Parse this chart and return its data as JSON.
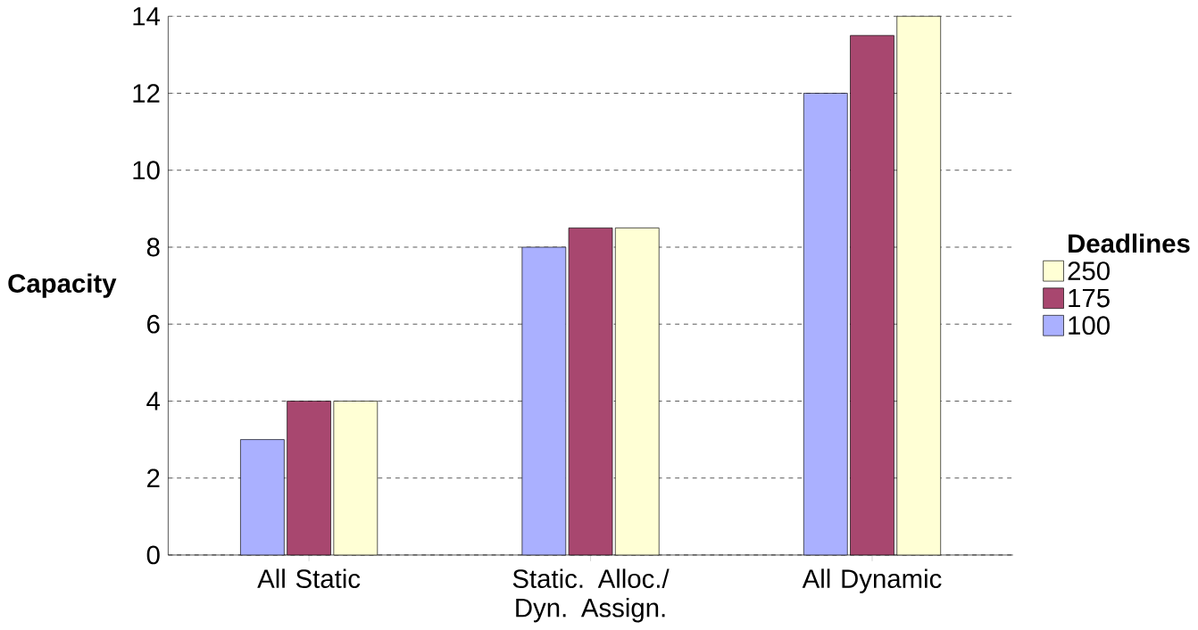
{
  "chart_data": {
    "type": "bar",
    "ylabel": "Capacity",
    "legend_title": "Deadlines",
    "categories": [
      "All Static",
      "Static. Alloc./ Dyn. Assign.",
      "All Dynamic"
    ],
    "series": [
      {
        "name": "100",
        "color": "#aab0ff",
        "values": [
          3,
          8,
          12
        ]
      },
      {
        "name": "175",
        "color": "#a8476f",
        "values": [
          4,
          8.5,
          13.5
        ]
      },
      {
        "name": "250",
        "color": "#ffffd5",
        "values": [
          4,
          8.5,
          14
        ]
      }
    ],
    "ylim": [
      0,
      14
    ],
    "yticks": [
      0,
      2,
      4,
      6,
      8,
      10,
      12,
      14
    ],
    "grid": "y",
    "legend": "right"
  }
}
